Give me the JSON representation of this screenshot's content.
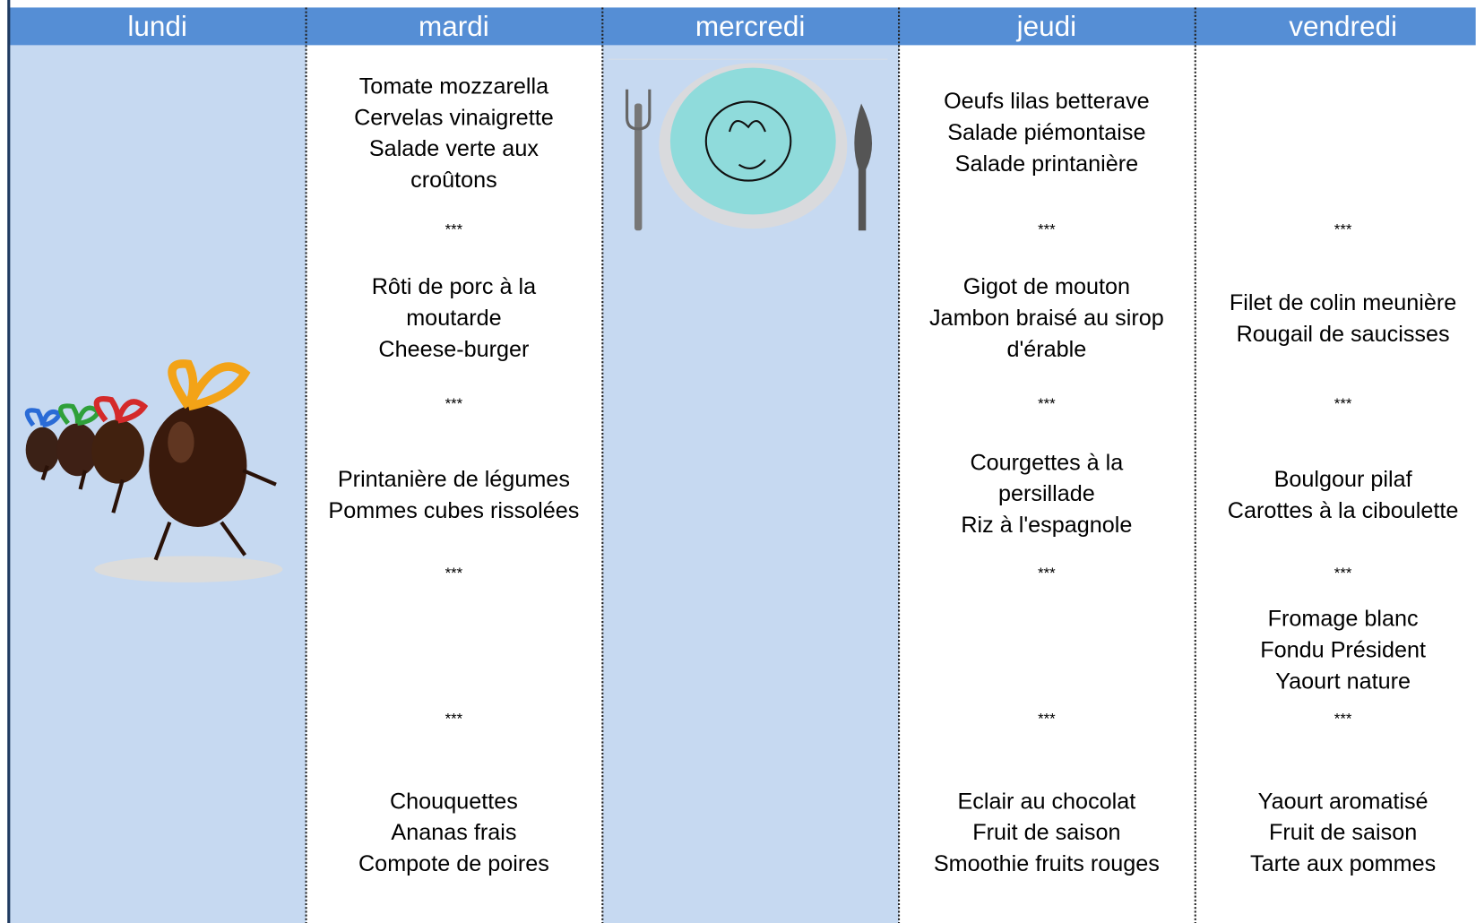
{
  "days": [
    {
      "name": "lundi",
      "blocks": []
    },
    {
      "name": "mardi",
      "blocks": [
        [
          "Tomate mozzarella",
          "Cervelas vinaigrette",
          "Salade verte aux",
          "croûtons"
        ],
        [
          "***"
        ],
        [
          "Rôti de porc à la",
          "moutarde",
          "Cheese-burger"
        ],
        [
          "***"
        ],
        [
          "Printanière de légumes",
          "Pommes cubes rissolées"
        ],
        [
          "***"
        ],
        [
          "***"
        ],
        [
          "Chouquettes",
          "Ananas frais",
          "Compote de poires"
        ]
      ]
    },
    {
      "name": "mercredi",
      "blocks": []
    },
    {
      "name": "jeudi",
      "blocks": [
        [
          "Oeufs lilas betterave",
          "Salade piémontaise",
          "Salade printanière"
        ],
        [
          "***"
        ],
        [
          "Gigot de mouton",
          "Jambon braisé au sirop",
          "d'érable"
        ],
        [
          "***"
        ],
        [
          "Courgettes à la",
          "persillade",
          "Riz à l'espagnole"
        ],
        [
          "***"
        ],
        [
          "***"
        ],
        [
          "Eclair au chocolat",
          "Fruit de saison",
          "Smoothie  fruits rouges"
        ]
      ]
    },
    {
      "name": "vendredi",
      "blocks": [
        [
          "***"
        ],
        [
          "Filet de colin meunière",
          "Rougail de saucisses"
        ],
        [
          "***"
        ],
        [
          "Boulgour pilaf",
          "Carottes à la ciboulette"
        ],
        [
          "***"
        ],
        [
          "Fromage blanc",
          "Fondu Président",
          "Yaourt nature"
        ],
        [
          "***"
        ],
        [
          "Yaourt aromatisé",
          "Fruit de saison",
          "Tarte aux pommes"
        ]
      ]
    }
  ]
}
